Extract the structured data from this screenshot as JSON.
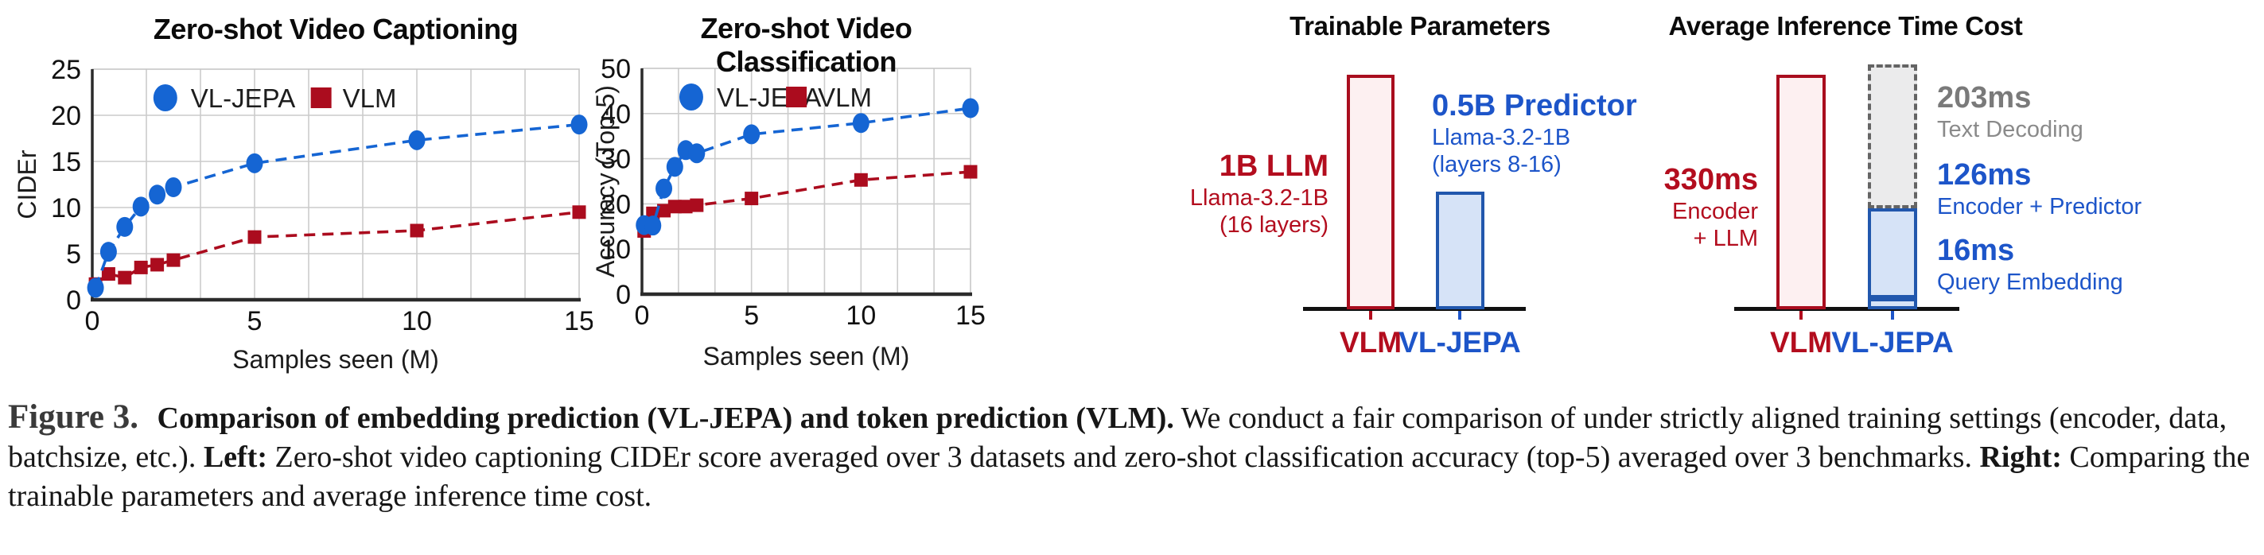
{
  "colors": {
    "blue_series": "#1565d3",
    "red_series": "#ab0c1e",
    "blue_text": "#1d55c9",
    "red_text": "#b30d1e",
    "bar_blue_border": "#2157ad",
    "bar_blue_fill": "#d6e3f7",
    "bar_red_border": "#a90d1e",
    "bar_red_fill": "#fdf0f1",
    "gray_border": "#646464",
    "gray_fill": "#ebebec",
    "gray_heading": "#7a7a7a",
    "gray_sub": "#8a8a8a",
    "grid": "#cccccc",
    "axis": "#2b2b2b",
    "plot_border": "#c6c6c6",
    "legend_text": "#1d1d1d",
    "tick_text": "#111111",
    "caption_figure_label": "#3a3a3a"
  },
  "chart_data": [
    {
      "type": "line",
      "id": "zero-shot-video-captioning",
      "title": "Zero-shot Video Captioning",
      "xlabel": "Samples seen (M)",
      "ylabel": "CIDEr",
      "xlim": [
        0,
        15
      ],
      "ylim": [
        0,
        25
      ],
      "xticks": [
        0,
        5,
        10,
        15
      ],
      "yticks": [
        0,
        5,
        10,
        15,
        20,
        25
      ],
      "grid": true,
      "legend_position": "top-inside",
      "legend_order": [
        "VL-JEPA",
        "VLM"
      ],
      "series": [
        {
          "name": "VLM",
          "marker": "square",
          "color": "#ab0c1e",
          "points": [
            [
              0.1,
              1.7
            ],
            [
              0.5,
              2.8
            ],
            [
              1,
              2.4
            ],
            [
              1.5,
              3.5
            ],
            [
              2,
              3.8
            ],
            [
              2.5,
              4.3
            ],
            [
              5,
              6.8
            ],
            [
              10,
              7.5
            ],
            [
              15,
              9.5
            ]
          ]
        },
        {
          "name": "VL-JEPA",
          "marker": "circle",
          "color": "#1565d3",
          "points": [
            [
              0.1,
              1.3
            ],
            [
              0.5,
              5.2
            ],
            [
              1,
              7.9
            ],
            [
              1.5,
              10.1
            ],
            [
              2,
              11.4
            ],
            [
              2.5,
              12.2
            ],
            [
              5,
              14.8
            ],
            [
              10,
              17.3
            ],
            [
              15,
              19.0
            ]
          ]
        }
      ]
    },
    {
      "type": "line",
      "id": "zero-shot-video-classification",
      "title": "Zero-shot Video Classification",
      "xlabel": "Samples seen (M)",
      "ylabel": "Accuracy (Top-5)",
      "xlim": [
        0,
        15
      ],
      "ylim": [
        0,
        50
      ],
      "xticks": [
        0,
        5,
        10,
        15
      ],
      "yticks": [
        0,
        10,
        20,
        30,
        40,
        50
      ],
      "grid": true,
      "legend_position": "top-inside",
      "legend_order": [
        "VL-JEPA",
        "VLM"
      ],
      "series": [
        {
          "name": "VLM",
          "marker": "square",
          "color": "#ab0c1e",
          "points": [
            [
              0.1,
              14.0
            ],
            [
              0.5,
              17.9
            ],
            [
              1,
              18.5
            ],
            [
              1.5,
              19.4
            ],
            [
              2,
              19.4
            ],
            [
              2.5,
              19.7
            ],
            [
              5,
              21.2
            ],
            [
              10,
              25.3
            ],
            [
              15,
              27.1
            ]
          ]
        },
        {
          "name": "VL-JEPA",
          "marker": "circle",
          "color": "#1565d3",
          "points": [
            [
              0.1,
              15.3
            ],
            [
              0.5,
              15.2
            ],
            [
              1,
              23.4
            ],
            [
              1.5,
              28.2
            ],
            [
              2,
              31.9
            ],
            [
              2.5,
              31.2
            ],
            [
              5,
              35.4
            ],
            [
              10,
              37.9
            ],
            [
              15,
              41.2
            ]
          ]
        }
      ]
    },
    {
      "type": "bar",
      "id": "trainable-parameters",
      "title": "Trainable Parameters",
      "categories": [
        "VLM",
        "VL-JEPA"
      ],
      "unit": "B parameters",
      "max_value": 1.0,
      "bars": [
        {
          "category": "VLM",
          "value": 1.0,
          "heading": "1B LLM",
          "sub1": "Llama-3.2-1B",
          "sub2": "(16 layers)",
          "style": "red"
        },
        {
          "category": "VL-JEPA",
          "value": 0.5,
          "heading": "0.5B Predictor",
          "sub1": "Llama-3.2-1B",
          "sub2": "(layers 8-16)",
          "style": "blue"
        }
      ]
    },
    {
      "type": "stacked-bar",
      "id": "average-inference-time-cost",
      "title": "Average Inference Time Cost",
      "categories": [
        "VLM",
        "VL-JEPA"
      ],
      "unit": "ms",
      "scale_total_ms": 330,
      "bars": [
        {
          "category": "VLM",
          "segments": [
            {
              "value_ms": 330,
              "heading": "330ms",
              "sub1": "Encoder",
              "sub2": "+ LLM",
              "style": "red"
            }
          ]
        },
        {
          "category": "VL-JEPA",
          "segments": [
            {
              "value_ms": 16,
              "heading": "16ms",
              "sub": "Query Embedding",
              "style": "blue"
            },
            {
              "value_ms": 126,
              "heading": "126ms",
              "sub": "Encoder + Predictor",
              "style": "blue"
            },
            {
              "value_ms": 203,
              "heading": "203ms",
              "sub": "Text Decoding",
              "style": "gray"
            }
          ]
        }
      ]
    }
  ],
  "caption": {
    "segments": [
      {
        "text": "Figure 3.",
        "style": "figure-label"
      },
      {
        "text": " Comparison of embedding prediction (VL-JEPA) and token prediction (VLM).",
        "style": "bold"
      },
      {
        "text": " We conduct a fair comparison of under strictly aligned training settings (encoder, data, batchsize, etc.). ",
        "style": "normal"
      },
      {
        "text": "Left:",
        "style": "bold"
      },
      {
        "text": " Zero-shot video captioning CIDEr score averaged over 3 datasets and zero-shot classification accuracy (top-5) averaged over 3 benchmarks. ",
        "style": "normal"
      },
      {
        "text": "Right:",
        "style": "bold"
      },
      {
        "text": " Comparing the trainable parameters and average inference time cost.",
        "style": "normal"
      }
    ]
  }
}
